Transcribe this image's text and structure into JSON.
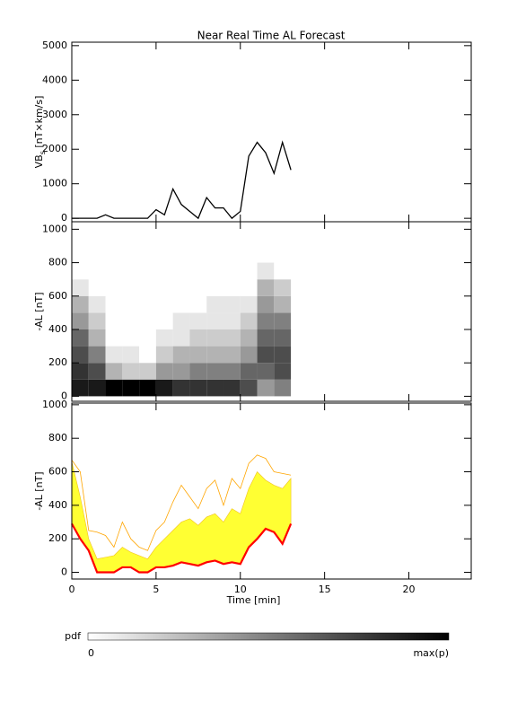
{
  "chart_data": [
    {
      "type": "line",
      "title": "Near Real Time AL Forecast",
      "y_label": "VB",
      "y_label_sub": "s",
      "y_label_unit": " [nT×km/s]",
      "x": [
        0,
        0.5,
        1,
        1.5,
        2,
        2.5,
        3,
        3.5,
        4,
        4.5,
        5,
        5.5,
        6,
        6.5,
        7,
        7.5,
        8,
        8.5,
        9,
        9.5,
        10,
        10.5,
        11,
        11.5,
        12,
        12.5,
        13
      ],
      "values": [
        0,
        0,
        0,
        0,
        100,
        0,
        0,
        0,
        0,
        0,
        250,
        100,
        850,
        400,
        200,
        0,
        600,
        300,
        300,
        0,
        200,
        1800,
        2200,
        1900,
        1300,
        2200,
        1400
      ],
      "color": "#000000",
      "xlim": [
        0,
        23.7
      ],
      "ylim": [
        -100,
        5100
      ],
      "yticks": [
        0,
        1000,
        2000,
        3000,
        4000,
        5000
      ]
    },
    {
      "type": "heatmap",
      "y_label": "-AL [nT]",
      "x_edges": [
        0,
        1,
        2,
        3,
        4,
        5,
        6,
        7,
        8,
        9,
        10,
        11,
        12,
        13
      ],
      "y_edges": [
        0,
        100,
        200,
        300,
        400,
        500,
        600,
        700,
        800
      ],
      "z": [
        [
          0.9,
          0.8,
          0.7,
          0.6,
          0.4,
          0.3,
          0.1,
          0
        ],
        [
          0.9,
          0.7,
          0.5,
          0.3,
          0.2,
          0.1,
          0,
          0
        ],
        [
          1,
          0.3,
          0.1,
          0,
          0,
          0,
          0,
          0
        ],
        [
          1,
          0.2,
          0.1,
          0,
          0,
          0,
          0,
          0
        ],
        [
          1,
          0.2,
          0,
          0,
          0,
          0,
          0,
          0
        ],
        [
          0.9,
          0.4,
          0.2,
          0.1,
          0,
          0,
          0,
          0
        ],
        [
          0.8,
          0.4,
          0.3,
          0.1,
          0.1,
          0,
          0,
          0
        ],
        [
          0.8,
          0.5,
          0.3,
          0.2,
          0.1,
          0,
          0,
          0
        ],
        [
          0.8,
          0.5,
          0.3,
          0.2,
          0.1,
          0.1,
          0,
          0
        ],
        [
          0.8,
          0.5,
          0.3,
          0.2,
          0.1,
          0.1,
          0,
          0
        ],
        [
          0.7,
          0.6,
          0.4,
          0.3,
          0.2,
          0.1,
          0,
          0
        ],
        [
          0.4,
          0.6,
          0.7,
          0.6,
          0.5,
          0.4,
          0.3,
          0.1
        ],
        [
          0.5,
          0.7,
          0.7,
          0.6,
          0.5,
          0.3,
          0.2,
          0
        ]
      ],
      "xlim": [
        0,
        23.7
      ],
      "ylim": [
        -30,
        1045
      ],
      "yticks": [
        0,
        200,
        400,
        600,
        800,
        1000
      ],
      "colorbar": {
        "label": "pdf",
        "range": [
          0,
          1
        ],
        "ticks": [
          0,
          {
            "value": 1,
            "label": "max(p)"
          }
        ]
      }
    },
    {
      "type": "band",
      "y_label": "-AL [nT]",
      "x_label": "Time [min]",
      "x": [
        0,
        0.5,
        1,
        1.5,
        2,
        2.5,
        3,
        3.5,
        4,
        4.5,
        5,
        5.5,
        6,
        6.5,
        7,
        7.5,
        8,
        8.5,
        9,
        9.5,
        10,
        10.5,
        11,
        11.5,
        12,
        12.5,
        13
      ],
      "median": {
        "color": "#ff0000",
        "values": [
          290,
          200,
          130,
          0,
          0,
          0,
          30,
          30,
          0,
          0,
          30,
          30,
          40,
          60,
          50,
          40,
          60,
          70,
          50,
          60,
          50,
          150,
          200,
          260,
          240,
          170,
          290
        ]
      },
      "upper": {
        "color": "#ffff33",
        "values": [
          660,
          450,
          200,
          80,
          90,
          100,
          150,
          120,
          100,
          80,
          150,
          200,
          250,
          300,
          320,
          280,
          330,
          350,
          300,
          380,
          350,
          500,
          600,
          550,
          520,
          500,
          560
        ]
      },
      "max": {
        "color": "#ffa500",
        "values": [
          670,
          600,
          250,
          240,
          220,
          150,
          300,
          200,
          150,
          130,
          250,
          300,
          420,
          520,
          450,
          380,
          500,
          550,
          400,
          560,
          500,
          650,
          700,
          680,
          600,
          590,
          580
        ]
      },
      "xlim": [
        0,
        23.7
      ],
      "ylim": [
        -40,
        1010
      ],
      "yticks": [
        0,
        200,
        400,
        600,
        800,
        1000
      ],
      "xticks": [
        0,
        5,
        10,
        15,
        20
      ]
    }
  ]
}
